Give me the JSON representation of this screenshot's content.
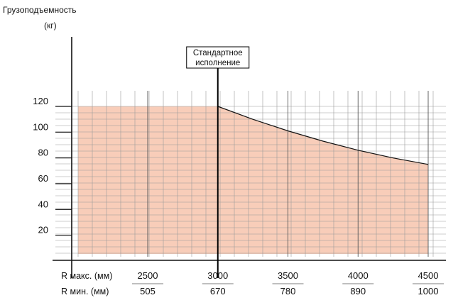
{
  "chart_data": {
    "type": "area",
    "ylabel_line1": "Грузоподъемность",
    "ylabel_line2": "(кг)",
    "ylim": [
      0,
      120
    ],
    "yticks": [
      20,
      40,
      60,
      80,
      100,
      120
    ],
    "x_rmax_label": "R  макс. (мм)",
    "x_rmin_label": "R  мин.  (мм)",
    "xticks": [
      {
        "rmax": "2500",
        "rmin": "505"
      },
      {
        "rmax": "3000",
        "rmin": "670"
      },
      {
        "rmax": "3500",
        "rmin": "780"
      },
      {
        "rmax": "4000",
        "rmin": "890"
      },
      {
        "rmax": "4500",
        "rmin": "1000"
      }
    ],
    "series": [
      {
        "x": [
          2500,
          3000,
          3250,
          3500,
          3750,
          4000,
          4250,
          4500
        ],
        "y": [
          120,
          120,
          110,
          101,
          93,
          86,
          80,
          75
        ]
      }
    ],
    "marker": {
      "x": 3000,
      "label_line1": "Стандартное",
      "label_line2": "исполнение"
    },
    "grid": true,
    "colors": {
      "fill": "#f8cdb9",
      "grid": "#9a9a9a",
      "axis": "#111111",
      "line": "#111111"
    }
  }
}
